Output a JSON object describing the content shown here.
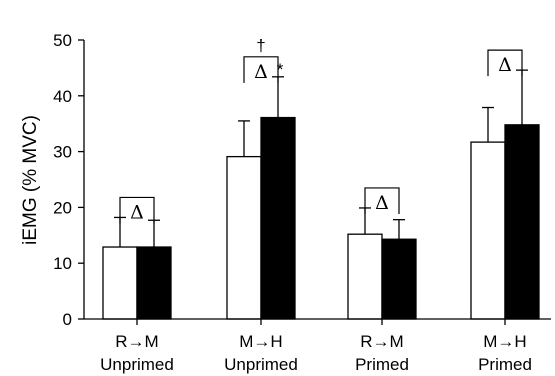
{
  "chart_data": {
    "type": "bar",
    "ylabel": "iEMG (% MVC)",
    "ylim": [
      0,
      50
    ],
    "yticks": [
      0,
      10,
      20,
      30,
      40,
      50
    ],
    "categories": [
      {
        "line1": "R→M",
        "line2": "Unprimed"
      },
      {
        "line1": "M→H",
        "line2": "Unprimed"
      },
      {
        "line1": "R→M",
        "line2": "Primed"
      },
      {
        "line1": "M→H",
        "line2": "Primed"
      }
    ],
    "series": [
      {
        "fill": "#ffffff",
        "values": [
          12.9,
          29.1,
          15.2,
          31.7
        ],
        "errors": [
          5.3,
          6.4,
          4.7,
          6.2
        ]
      },
      {
        "fill": "#000000",
        "values": [
          12.9,
          36.1,
          14.3,
          34.8
        ],
        "errors": [
          4.8,
          7.3,
          3.5,
          9.8
        ]
      }
    ],
    "brackets": [
      {
        "label": "Δ",
        "above": ""
      },
      {
        "label": "Δ",
        "above": "†"
      },
      {
        "label": "Δ",
        "above": ""
      },
      {
        "label": "Δ",
        "above": ""
      }
    ],
    "bar_marks": [
      {
        "category": 1,
        "series": 1,
        "label": "*"
      }
    ],
    "grid": false,
    "legend": "none"
  }
}
